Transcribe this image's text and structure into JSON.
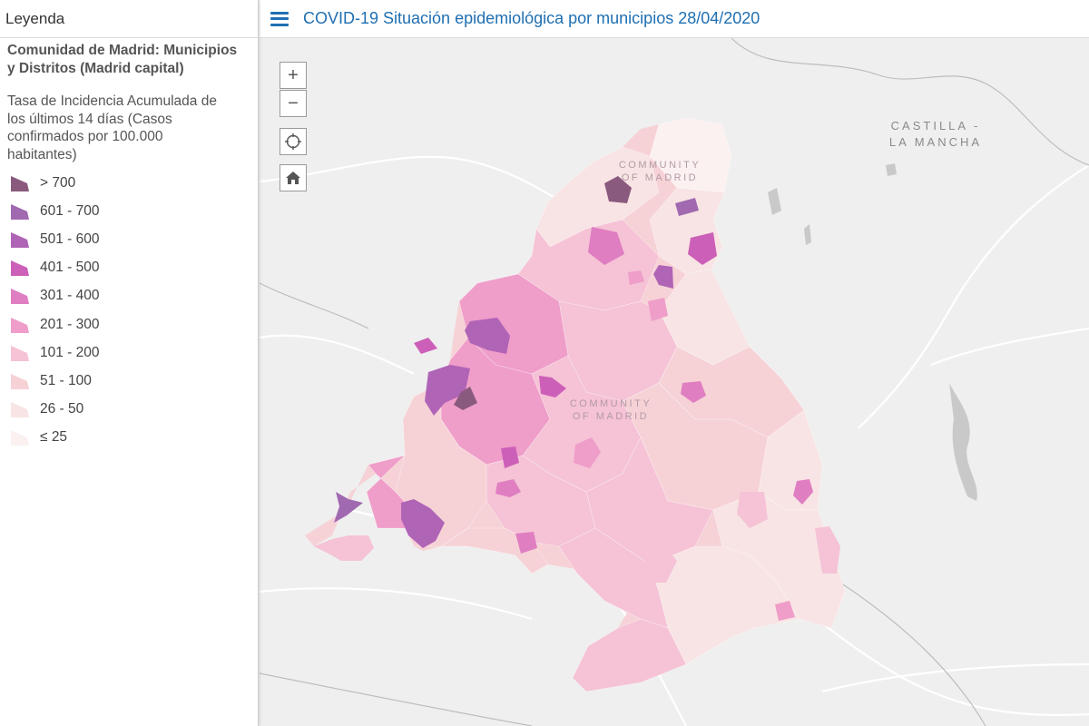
{
  "legend": {
    "header": "Leyenda",
    "layer_title": "Comunidad de Madrid: Municipios y Distritos (Madrid capital)",
    "field_title": "Tasa de Incidencia Acumulada de los últimos 14 días (Casos confirmados por 100.000 habitantes)",
    "items": [
      {
        "label": "> 700",
        "color": "#8a5a7e"
      },
      {
        "label": "601 - 700",
        "color": "#a069b0"
      },
      {
        "label": "501 - 600",
        "color": "#b064b6"
      },
      {
        "label": "401 - 500",
        "color": "#cc5fb8"
      },
      {
        "label": "301 - 400",
        "color": "#e07ec2"
      },
      {
        "label": "201 - 300",
        "color": "#ef9dc9"
      },
      {
        "label": "101 - 200",
        "color": "#f5c2d6"
      },
      {
        "label": "51 - 100",
        "color": "#f6d2d6"
      },
      {
        "label": "26 - 50",
        "color": "#f8e4e4"
      },
      {
        "label": "≤ 25",
        "color": "#fbf1f1"
      }
    ]
  },
  "header": {
    "title": "COVID-19 Situación epidemiológica por municipios 28/04/2020"
  },
  "map": {
    "controls": {
      "zoom_in": "+",
      "zoom_out": "−",
      "locate_icon": "crosshair-icon",
      "home_icon": "home-icon"
    },
    "labels": {
      "region_line1": "CASTILLA -",
      "region_line2": "LA MANCHA",
      "community_north_line1": "COMMUNITY",
      "community_north_line2": "OF MADRID",
      "community_center_line1": "COMMUNITY",
      "community_center_line2": "OF MADRID"
    },
    "colors": {
      "base": "#efefef",
      "roads": "#ffffff",
      "borders": "#bdbdbd"
    }
  }
}
